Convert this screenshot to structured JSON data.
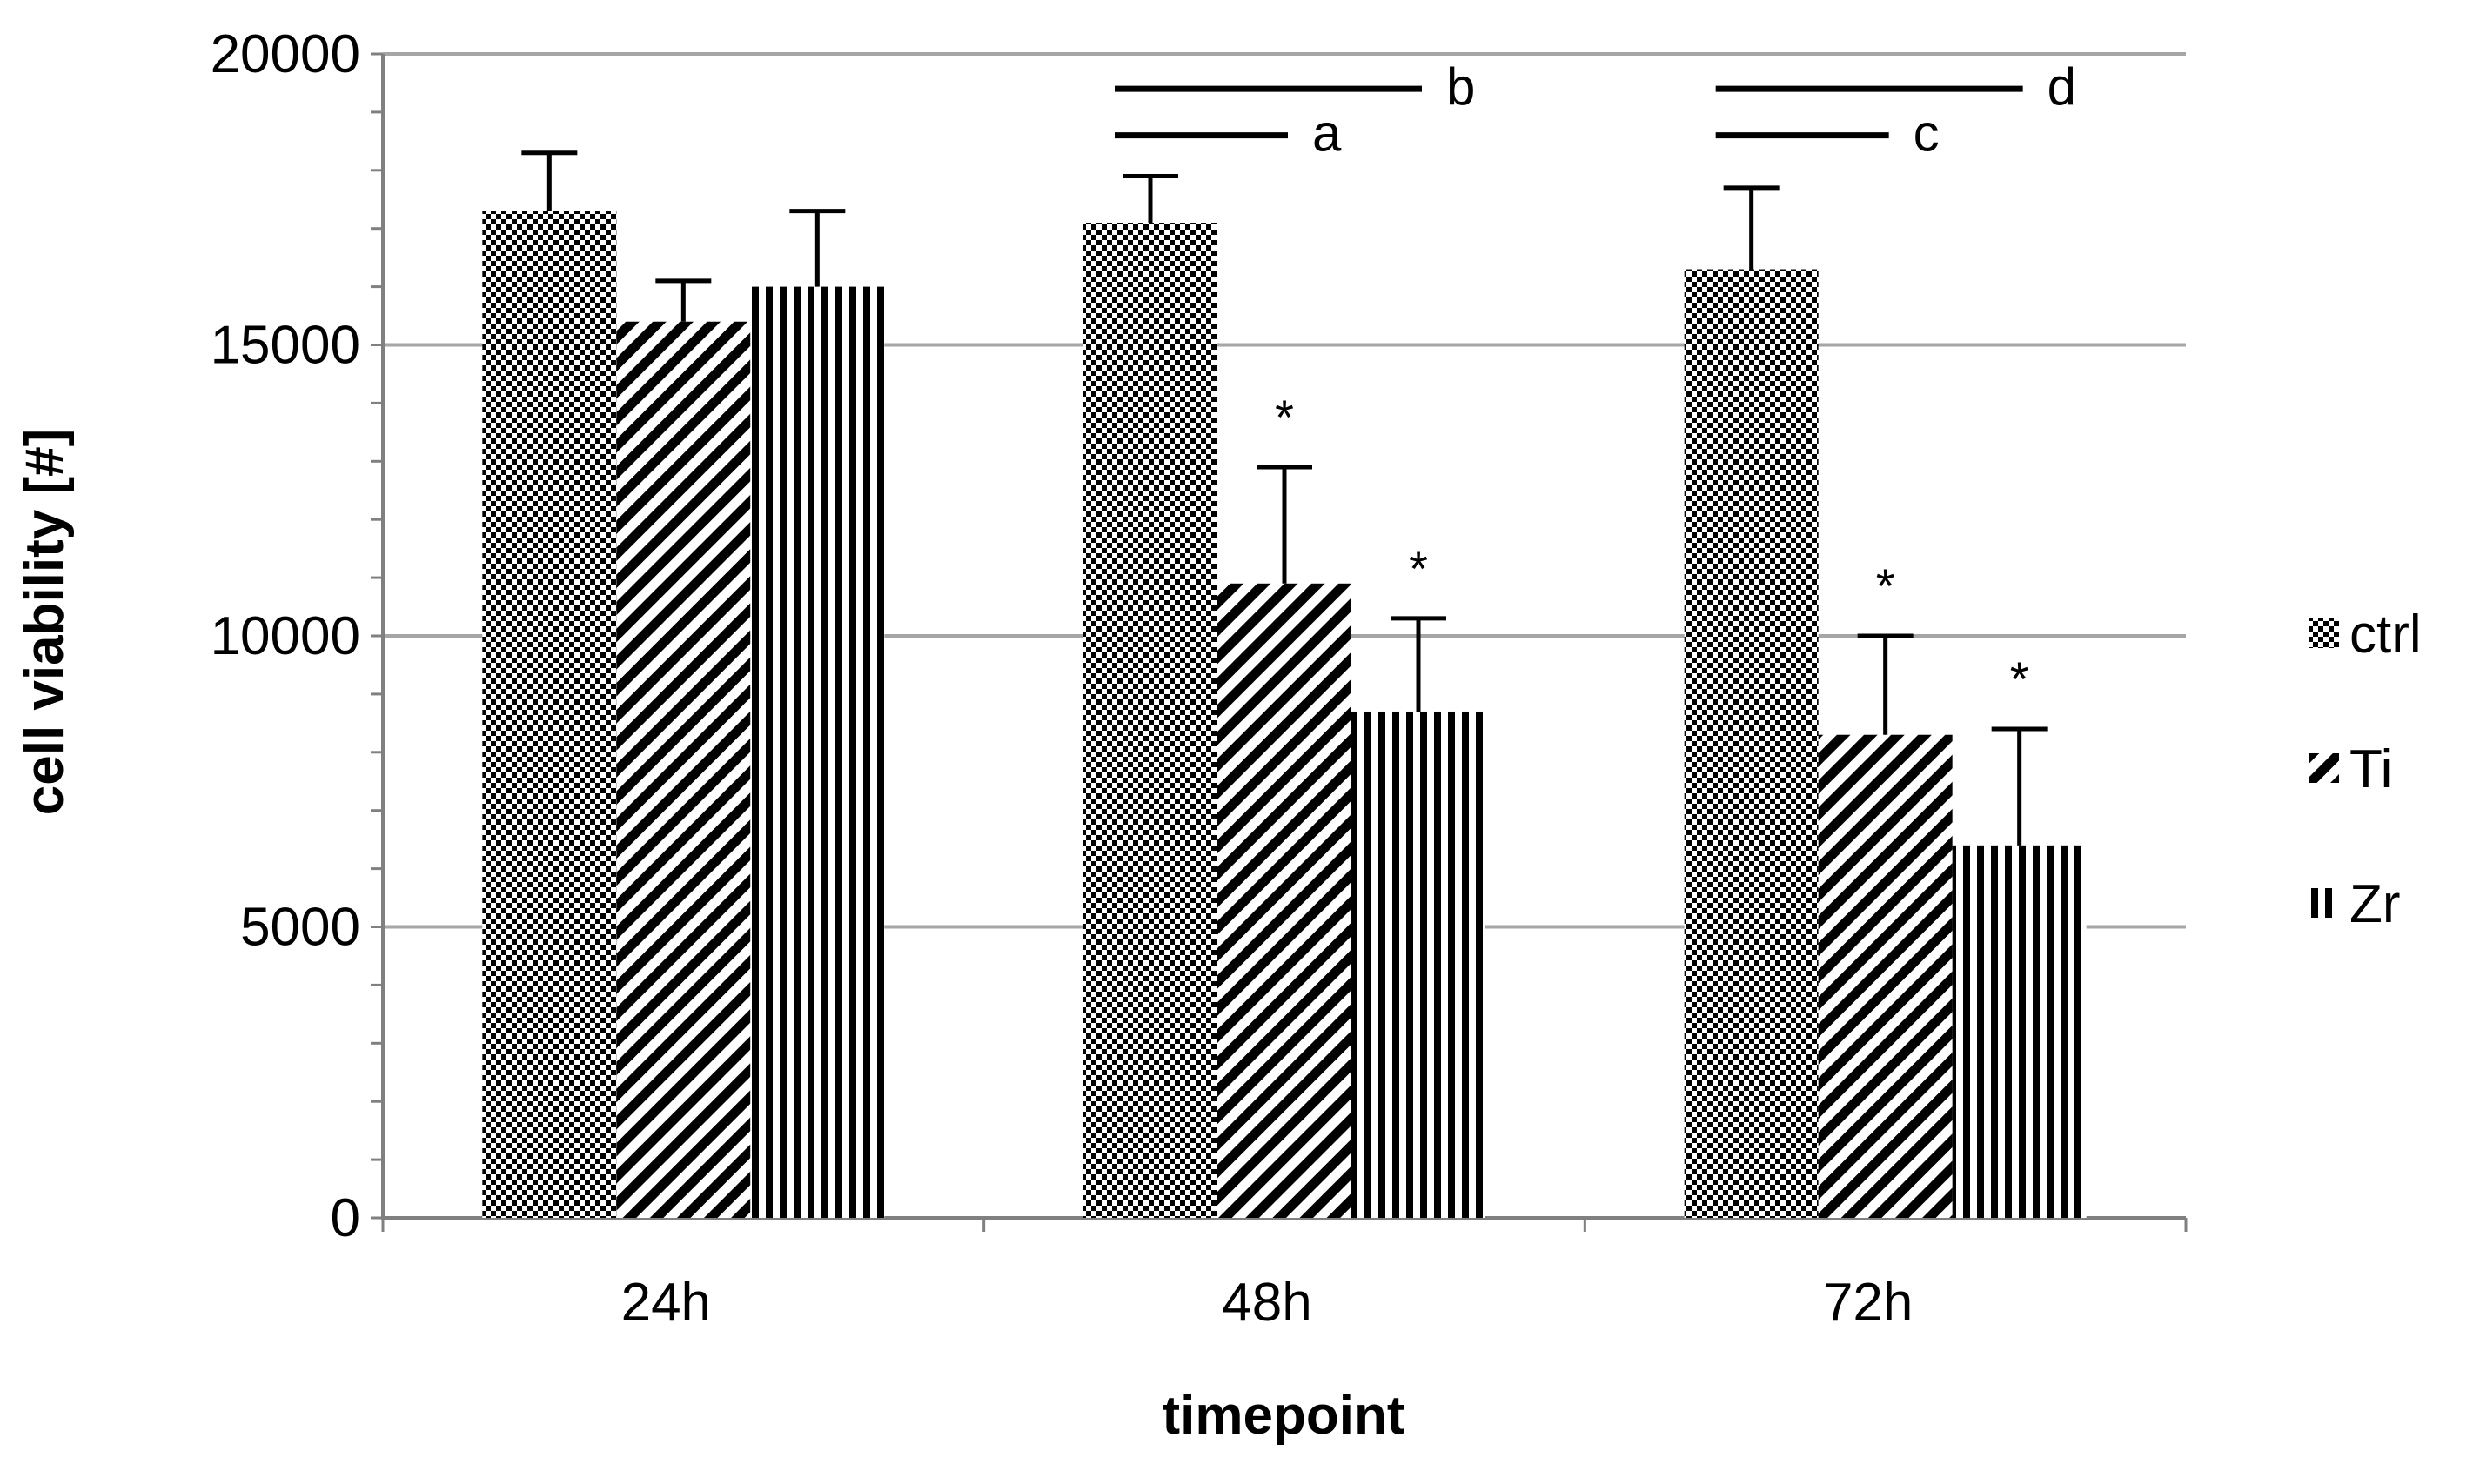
{
  "chart_data": {
    "type": "bar",
    "title": "",
    "xlabel": "timepoint",
    "ylabel": "cell viability [#]",
    "categories": [
      "24h",
      "48h",
      "72h"
    ],
    "ylim": [
      0,
      20000
    ],
    "yticks": [
      0,
      5000,
      10000,
      15000,
      20000
    ],
    "grid": true,
    "legend_position": "right",
    "series": [
      {
        "name": "ctrl",
        "pattern": "checker",
        "values": [
          17300,
          17100,
          16300
        ],
        "errors": [
          1000,
          800,
          1400
        ]
      },
      {
        "name": "Ti",
        "pattern": "diagonal",
        "values": [
          15400,
          10900,
          8300
        ],
        "errors": [
          700,
          2000,
          1700
        ]
      },
      {
        "name": "Zr",
        "pattern": "vertical",
        "values": [
          16000,
          8700,
          6400
        ],
        "errors": [
          1300,
          1600,
          2000
        ]
      }
    ],
    "significance_stars": [
      {
        "category": "48h",
        "series": "Ti",
        "label": "*"
      },
      {
        "category": "48h",
        "series": "Zr",
        "label": "*"
      },
      {
        "category": "72h",
        "series": "Ti",
        "label": "*"
      },
      {
        "category": "72h",
        "series": "Zr",
        "label": "*"
      }
    ],
    "comparison_brackets": [
      {
        "category": "48h",
        "from": "ctrl",
        "to": "Ti",
        "label": "a"
      },
      {
        "category": "48h",
        "from": "ctrl",
        "to": "Zr",
        "label": "b"
      },
      {
        "category": "72h",
        "from": "ctrl",
        "to": "Ti",
        "label": "c"
      },
      {
        "category": "72h",
        "from": "ctrl",
        "to": "Zr",
        "label": "d"
      }
    ],
    "colors": {
      "ink": "#000000",
      "grid": "#a6a6a6",
      "background": "#ffffff"
    }
  }
}
